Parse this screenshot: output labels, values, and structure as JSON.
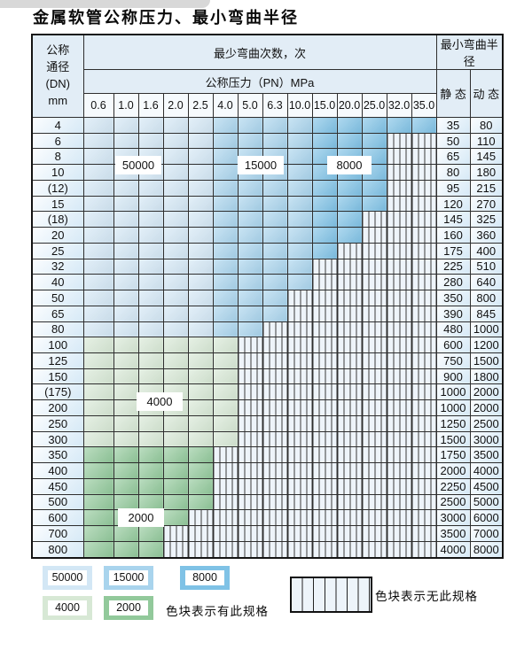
{
  "title": "金属软管公称压力、最小弯曲半径",
  "table": {
    "dn_header_lines": [
      "公称",
      "通径",
      "(DN)",
      "mm"
    ],
    "bend_cycles_header": "最少弯曲次数，次",
    "pressure_header": "公称压力（PN）MPa",
    "radius_header": "最小弯曲半径",
    "static_header": "静 态",
    "dynamic_header": "动 态",
    "pressure_columns": [
      "0.6",
      "1.0",
      "1.6",
      "2.0",
      "2.5",
      "4.0",
      "5.0",
      "6.3",
      "10.0",
      "15.0",
      "20.0",
      "25.0",
      "32.0",
      "35.0"
    ],
    "cycle_color_bands": [
      {
        "cycles": "50000",
        "applies_to": "pressure columns 0.6–2.5 (blue rows DN4–DN80)",
        "color": "#d3e7f5"
      },
      {
        "cycles": "15000",
        "applies_to": "pressure columns 4.0–10.0 (blue rows DN4–DN80)",
        "color": "#a9d4ed"
      },
      {
        "cycles": "8000",
        "applies_to": "pressure columns 15.0–35.0 (blue rows DN4–DN80)",
        "color": "#7fc2e6"
      },
      {
        "cycles": "4000",
        "applies_to": "rows DN100–DN300",
        "color": "#d7e8d5"
      },
      {
        "cycles": "2000",
        "applies_to": "rows DN350–DN800",
        "color": "#92c99b"
      }
    ],
    "rows": [
      {
        "dn": "4",
        "shade": "blue",
        "colored_cols": 14,
        "max_pn": "35.0",
        "static": "35",
        "dynamic": "80"
      },
      {
        "dn": "6",
        "shade": "blue",
        "colored_cols": 12,
        "max_pn": "25.0",
        "static": "50",
        "dynamic": "110"
      },
      {
        "dn": "8",
        "shade": "blue",
        "colored_cols": 12,
        "max_pn": "25.0",
        "static": "65",
        "dynamic": "145"
      },
      {
        "dn": "10",
        "shade": "blue",
        "colored_cols": 12,
        "max_pn": "25.0",
        "static": "80",
        "dynamic": "180"
      },
      {
        "dn": "(12)",
        "shade": "blue",
        "colored_cols": 12,
        "max_pn": "25.0",
        "static": "95",
        "dynamic": "215"
      },
      {
        "dn": "15",
        "shade": "blue",
        "colored_cols": 12,
        "max_pn": "25.0",
        "static": "120",
        "dynamic": "270"
      },
      {
        "dn": "(18)",
        "shade": "blue",
        "colored_cols": 11,
        "max_pn": "20.0",
        "static": "145",
        "dynamic": "325"
      },
      {
        "dn": "20",
        "shade": "blue",
        "colored_cols": 11,
        "max_pn": "20.0",
        "static": "160",
        "dynamic": "360"
      },
      {
        "dn": "25",
        "shade": "blue",
        "colored_cols": 10,
        "max_pn": "15.0",
        "static": "175",
        "dynamic": "400"
      },
      {
        "dn": "32",
        "shade": "blue",
        "colored_cols": 9,
        "max_pn": "10.0",
        "static": "225",
        "dynamic": "510"
      },
      {
        "dn": "40",
        "shade": "blue",
        "colored_cols": 9,
        "max_pn": "10.0",
        "static": "280",
        "dynamic": "640"
      },
      {
        "dn": "50",
        "shade": "blue",
        "colored_cols": 8,
        "max_pn": "6.3",
        "static": "350",
        "dynamic": "800"
      },
      {
        "dn": "65",
        "shade": "blue",
        "colored_cols": 8,
        "max_pn": "6.3",
        "static": "390",
        "dynamic": "845"
      },
      {
        "dn": "80",
        "shade": "blue",
        "colored_cols": 7,
        "max_pn": "5.0",
        "static": "480",
        "dynamic": "1000"
      },
      {
        "dn": "100",
        "shade": "green-4000",
        "colored_cols": 6,
        "max_pn": "4.0",
        "static": "600",
        "dynamic": "1200"
      },
      {
        "dn": "125",
        "shade": "green-4000",
        "colored_cols": 6,
        "max_pn": "4.0",
        "static": "750",
        "dynamic": "1500"
      },
      {
        "dn": "150",
        "shade": "green-4000",
        "colored_cols": 6,
        "max_pn": "4.0",
        "static": "900",
        "dynamic": "1800"
      },
      {
        "dn": "(175)",
        "shade": "green-4000",
        "colored_cols": 6,
        "max_pn": "4.0",
        "static": "1000",
        "dynamic": "2000"
      },
      {
        "dn": "200",
        "shade": "green-4000",
        "colored_cols": 6,
        "max_pn": "4.0",
        "static": "1000",
        "dynamic": "2000"
      },
      {
        "dn": "250",
        "shade": "green-4000",
        "colored_cols": 6,
        "max_pn": "4.0",
        "static": "1250",
        "dynamic": "2500"
      },
      {
        "dn": "300",
        "shade": "green-4000",
        "colored_cols": 6,
        "max_pn": "4.0",
        "static": "1500",
        "dynamic": "3000"
      },
      {
        "dn": "350",
        "shade": "green-2000",
        "colored_cols": 5,
        "max_pn": "2.5",
        "static": "1750",
        "dynamic": "3500"
      },
      {
        "dn": "400",
        "shade": "green-2000",
        "colored_cols": 5,
        "max_pn": "2.5",
        "static": "2000",
        "dynamic": "4000"
      },
      {
        "dn": "450",
        "shade": "green-2000",
        "colored_cols": 5,
        "max_pn": "2.5",
        "static": "2250",
        "dynamic": "4500"
      },
      {
        "dn": "500",
        "shade": "green-2000",
        "colored_cols": 5,
        "max_pn": "2.5",
        "static": "2500",
        "dynamic": "5000"
      },
      {
        "dn": "600",
        "shade": "green-2000",
        "colored_cols": 4,
        "max_pn": "2.0",
        "static": "3000",
        "dynamic": "6000"
      },
      {
        "dn": "700",
        "shade": "green-2000",
        "colored_cols": 3,
        "max_pn": "1.6",
        "static": "3500",
        "dynamic": "7000"
      },
      {
        "dn": "800",
        "shade": "green-2000",
        "colored_cols": 3,
        "max_pn": "1.6",
        "static": "4000",
        "dynamic": "8000"
      }
    ]
  },
  "overlay_labels": [
    {
      "text": "50000"
    },
    {
      "text": "15000"
    },
    {
      "text": "8000"
    },
    {
      "text": "4000"
    },
    {
      "text": "2000"
    }
  ],
  "legend": {
    "swatches": [
      {
        "label": "50000",
        "color": "#d3e7f5"
      },
      {
        "label": "15000",
        "color": "#a9d4ed"
      },
      {
        "label": "8000",
        "color": "#7fc2e6"
      },
      {
        "label": "4000",
        "color": "#d7e8d5"
      },
      {
        "label": "2000",
        "color": "#92c99b"
      }
    ],
    "has_spec_text": "色块表示有此规格",
    "no_spec_text": "色块表示无此规格",
    "hatch_color": "#eef4fa"
  }
}
